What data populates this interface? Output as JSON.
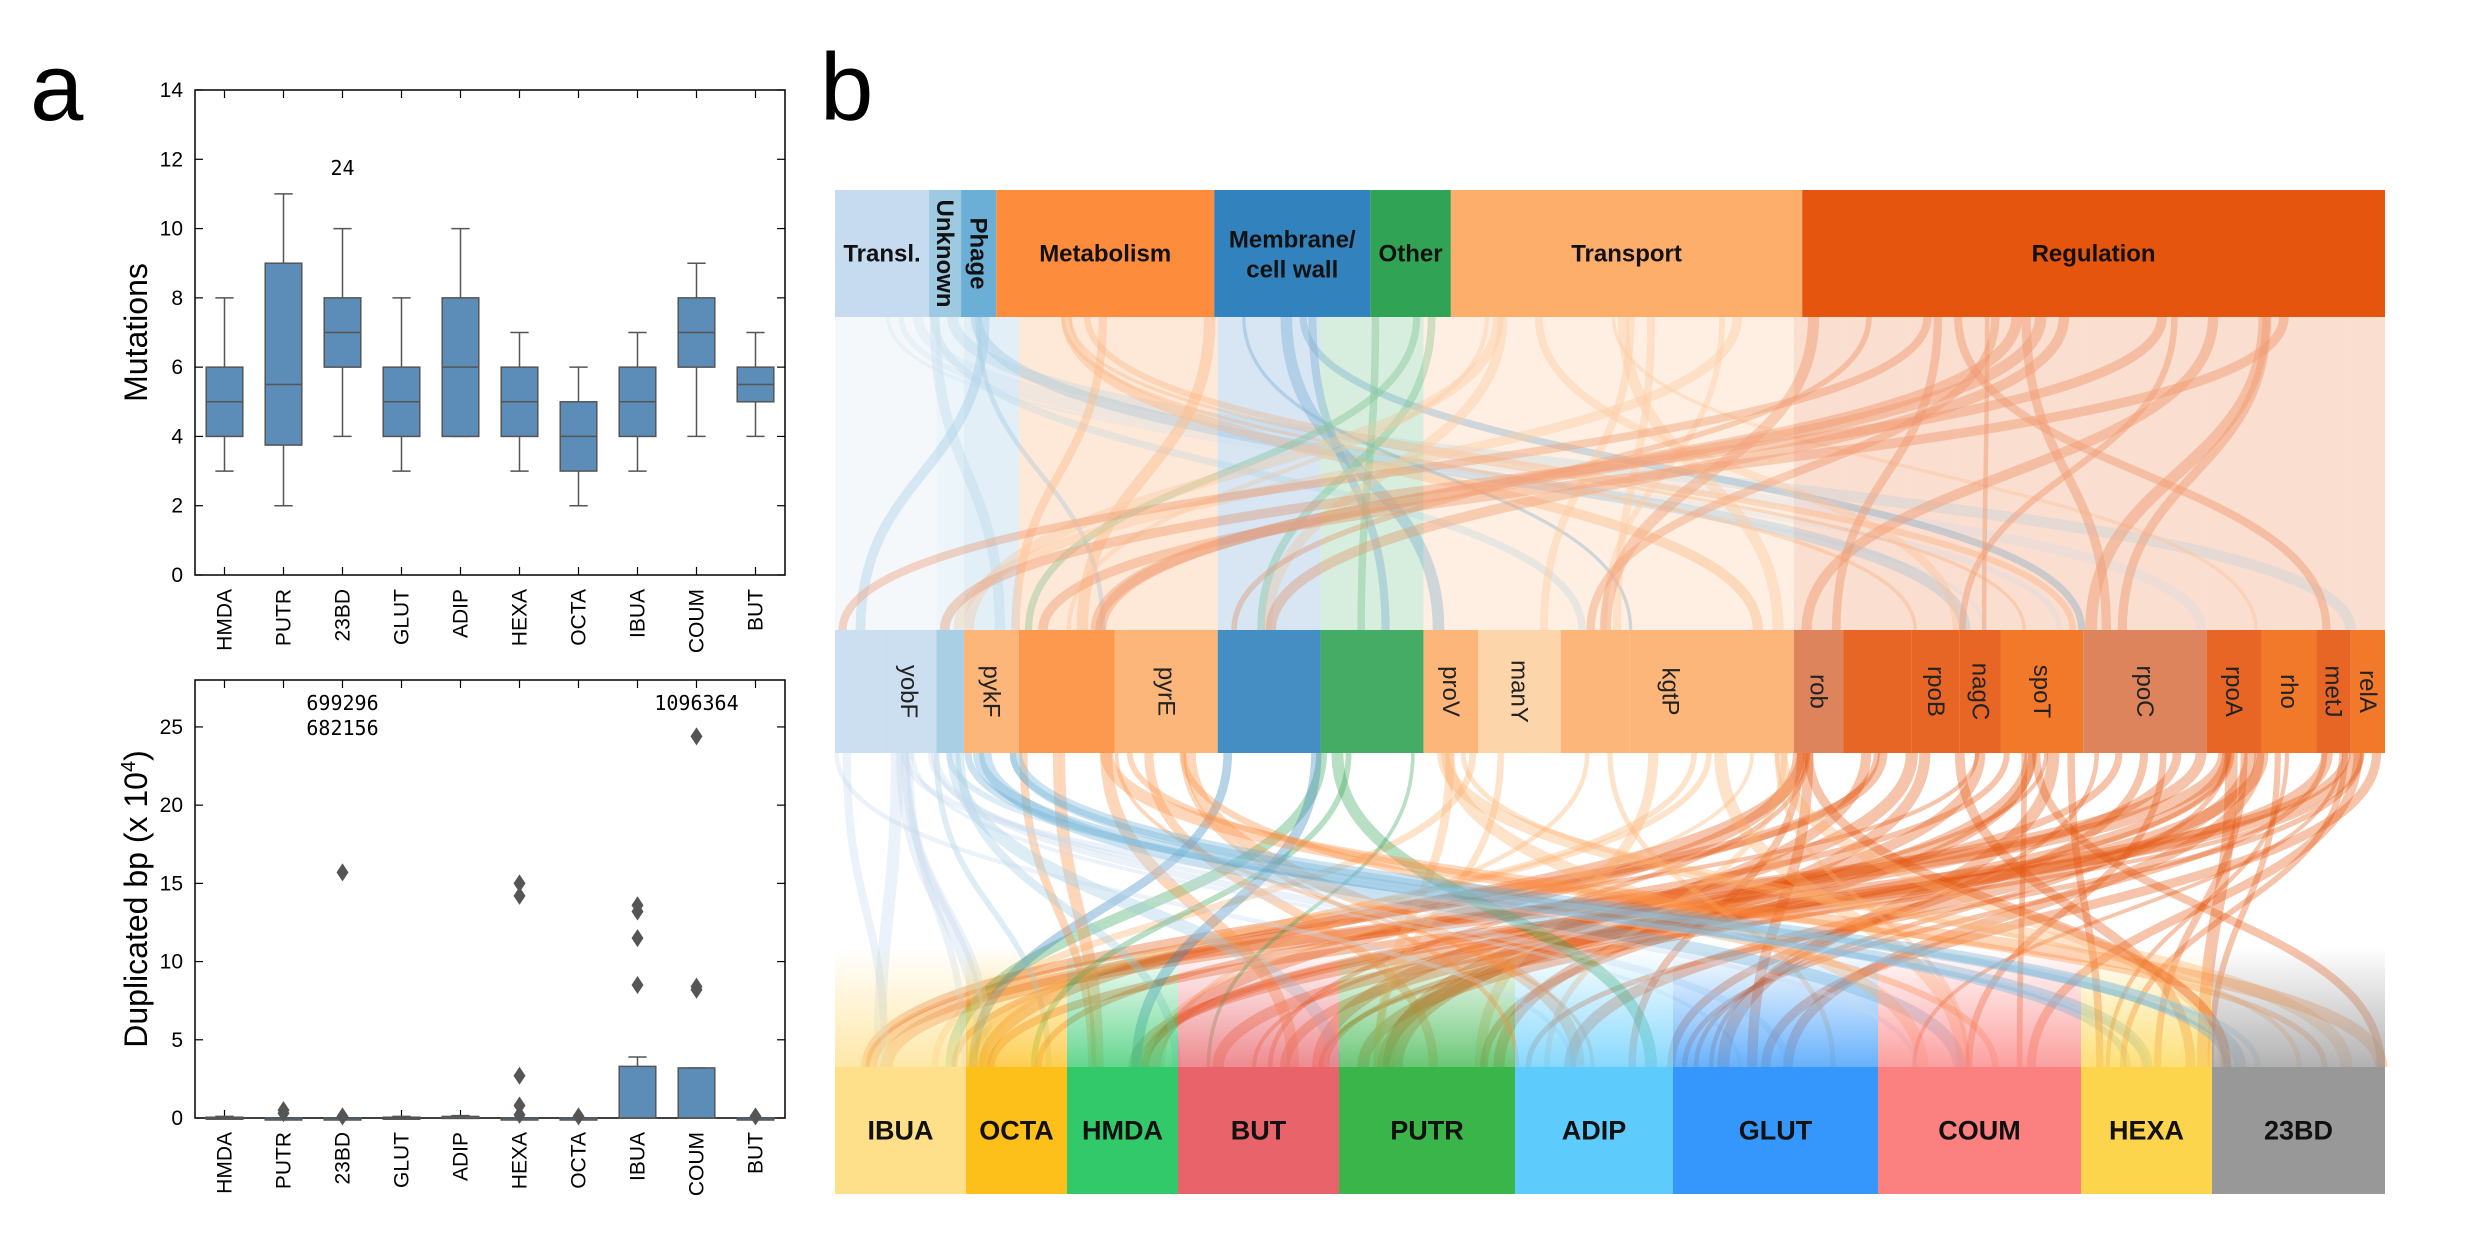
{
  "panel_a_label": "a",
  "panel_b_label": "b",
  "chart_data": [
    {
      "type": "box",
      "ylabel": "Mutations",
      "ylim": [
        0,
        14
      ],
      "yticks": [
        0,
        2,
        4,
        6,
        8,
        10,
        12,
        14
      ],
      "categories": [
        "HMDA",
        "PUTR",
        "23BD",
        "GLUT",
        "ADIP",
        "HEXA",
        "OCTA",
        "IBUA",
        "COUM",
        "BUT"
      ],
      "boxes": [
        {
          "whislo": 3,
          "q1": 4,
          "med": 5,
          "q3": 6,
          "whishi": 8
        },
        {
          "whislo": 2,
          "q1": 3.75,
          "med": 5.5,
          "q3": 9,
          "whishi": 11
        },
        {
          "whislo": 4,
          "q1": 6,
          "med": 7,
          "q3": 8,
          "whishi": 10
        },
        {
          "whislo": 3,
          "q1": 4,
          "med": 5,
          "q3": 6,
          "whishi": 8
        },
        {
          "whislo": 4,
          "q1": 4,
          "med": 6,
          "q3": 8,
          "whishi": 10
        },
        {
          "whislo": 3,
          "q1": 4,
          "med": 5,
          "q3": 6,
          "whishi": 7
        },
        {
          "whislo": 2,
          "q1": 3,
          "med": 4,
          "q3": 5,
          "whishi": 6
        },
        {
          "whislo": 3,
          "q1": 4,
          "med": 5,
          "q3": 6,
          "whishi": 7
        },
        {
          "whislo": 4,
          "q1": 6,
          "med": 7,
          "q3": 8,
          "whishi": 9
        },
        {
          "whislo": 4,
          "q1": 5,
          "med": 5.5,
          "q3": 6,
          "whishi": 7
        }
      ],
      "annotations": [
        {
          "category": "23BD",
          "text": "24"
        }
      ],
      "color": "#5b8db8"
    },
    {
      "type": "box",
      "ylabel": "Duplicated bp (x 10",
      "ylabel_exp": "4",
      "ylabel_tail": ")",
      "ylim": [
        0,
        28
      ],
      "yticks": [
        0,
        5,
        10,
        15,
        20,
        25
      ],
      "categories": [
        "HMDA",
        "PUTR",
        "23BD",
        "GLUT",
        "ADIP",
        "HEXA",
        "OCTA",
        "IBUA",
        "COUM",
        "BUT"
      ],
      "boxes": [
        {
          "whislo": 0,
          "q1": 0,
          "med": 0,
          "q3": 0.05,
          "whishi": 0.1,
          "fliers": []
        },
        {
          "whislo": 0,
          "q1": 0,
          "med": 0,
          "q3": 0,
          "whishi": 0,
          "fliers": [
            0.5,
            0.3
          ]
        },
        {
          "whislo": 0,
          "q1": 0,
          "med": 0,
          "q3": 0,
          "whishi": 0,
          "fliers": [
            15.7,
            0.1
          ]
        },
        {
          "whislo": 0,
          "q1": 0,
          "med": 0,
          "q3": 0.05,
          "whishi": 0.1,
          "fliers": []
        },
        {
          "whislo": 0,
          "q1": 0,
          "med": 0,
          "q3": 0.1,
          "whishi": 0.15,
          "fliers": []
        },
        {
          "whislo": 0,
          "q1": 0,
          "med": 0,
          "q3": 0,
          "whishi": 0,
          "fliers": [
            15.0,
            14.2,
            2.7,
            0.8,
            0.2
          ]
        },
        {
          "whislo": 0,
          "q1": 0,
          "med": 0,
          "q3": 0,
          "whishi": 0,
          "fliers": [
            0.1
          ]
        },
        {
          "whislo": 0,
          "q1": 0,
          "med": 0,
          "q3": 3.3,
          "whishi": 3.9,
          "fliers": [
            13.6,
            13.2,
            11.5,
            8.5
          ]
        },
        {
          "whislo": 0,
          "q1": 0,
          "med": 0,
          "q3": 3.2,
          "whishi": 3.2,
          "fliers": [
            24.4,
            8.4,
            8.2
          ]
        },
        {
          "whislo": 0,
          "q1": 0,
          "med": 0,
          "q3": 0,
          "whishi": 0,
          "fliers": [
            0.1
          ]
        }
      ],
      "annotations": [
        {
          "category": "23BD",
          "text": "699296",
          "row": 0
        },
        {
          "category": "23BD",
          "text": "682156",
          "row": 1
        },
        {
          "category": "COUM",
          "text": "1096364",
          "row": 0
        }
      ],
      "color": "#5b8db8"
    },
    {
      "type": "alluvial",
      "categories_top": [
        {
          "label": "Transl.",
          "w": 91,
          "color": "#c6dbef",
          "vertical": false
        },
        {
          "label": "Unknown",
          "w": 31,
          "color": "#9ecae1",
          "vertical": true
        },
        {
          "label": "Phage",
          "w": 34,
          "color": "#6baed6",
          "vertical": true
        },
        {
          "label": "Metabolism",
          "w": 211,
          "color": "#fd8d3c",
          "vertical": false
        },
        {
          "label": "Membrane/ cell wall",
          "w": 151,
          "color": "#3182bd",
          "vertical": false
        },
        {
          "label": "Other",
          "w": 78,
          "color": "#31a354",
          "vertical": false
        },
        {
          "label": "Transport",
          "w": 340,
          "color": "#fdae6b",
          "vertical": false
        },
        {
          "label": "Regulation",
          "w": 564,
          "color": "#e6550d",
          "vertical": false
        }
      ],
      "genes": [
        {
          "label": "",
          "w": 34,
          "color": "#c6dbef"
        },
        {
          "label": "yobF",
          "w": 40,
          "color": "#c6dbef"
        },
        {
          "label": "",
          "w": 20,
          "color": "#9ecae1"
        },
        {
          "label": "pykF",
          "w": 40,
          "color": "#fdae6b"
        },
        {
          "label": "",
          "w": 70,
          "color": "#fd8d3c"
        },
        {
          "label": "pyrE",
          "w": 75,
          "color": "#fdae6b"
        },
        {
          "label": "",
          "w": 75,
          "color": "#3182bd"
        },
        {
          "label": "",
          "w": 75,
          "color": "#31a354"
        },
        {
          "label": "proV",
          "w": 40,
          "color": "#fdae6b"
        },
        {
          "label": "manY",
          "w": 60,
          "color": "#fdd0a2"
        },
        {
          "label": "",
          "w": 50,
          "color": "#fdae6b"
        },
        {
          "label": "kgtP",
          "w": 60,
          "color": "#fdae6b"
        },
        {
          "label": "",
          "w": 60,
          "color": "#fdae6b"
        },
        {
          "label": "rob",
          "w": 36,
          "color": "#d9774b"
        },
        {
          "label": "",
          "w": 50,
          "color": "#e6550d"
        },
        {
          "label": "rpoB",
          "w": 35,
          "color": "#e6550d"
        },
        {
          "label": "nagC",
          "w": 30,
          "color": "#e6550d"
        },
        {
          "label": "spoT",
          "w": 60,
          "color": "#f16913"
        },
        {
          "label": "rpoC",
          "w": 90,
          "color": "#d9774b"
        },
        {
          "label": "rpoA",
          "w": 40,
          "color": "#e6550d"
        },
        {
          "label": "rho",
          "w": 40,
          "color": "#f16913"
        },
        {
          "label": "metJ",
          "w": 25,
          "color": "#e6550d"
        },
        {
          "label": "relA",
          "w": 25,
          "color": "#f16913"
        }
      ],
      "conditions_bottom": [
        {
          "label": "IBUA",
          "w": 131,
          "color": "#fee08b"
        },
        {
          "label": "OCTA",
          "w": 101,
          "color": "#fdbf1a"
        },
        {
          "label": "HMDA",
          "w": 111,
          "color": "#31c96a"
        },
        {
          "label": "BUT",
          "w": 161,
          "color": "#e8646a"
        },
        {
          "label": "PUTR",
          "w": 176,
          "color": "#3ab54a"
        },
        {
          "label": "ADIP",
          "w": 158,
          "color": "#5ecbfd"
        },
        {
          "label": "GLUT",
          "w": 205,
          "color": "#3597fb"
        },
        {
          "label": "COUM",
          "w": 203,
          "color": "#fb8080"
        },
        {
          "label": "HEXA",
          "w": 131,
          "color": "#fdd54c"
        },
        {
          "label": "23BD",
          "w": 173,
          "color": "#989898"
        }
      ]
    }
  ]
}
